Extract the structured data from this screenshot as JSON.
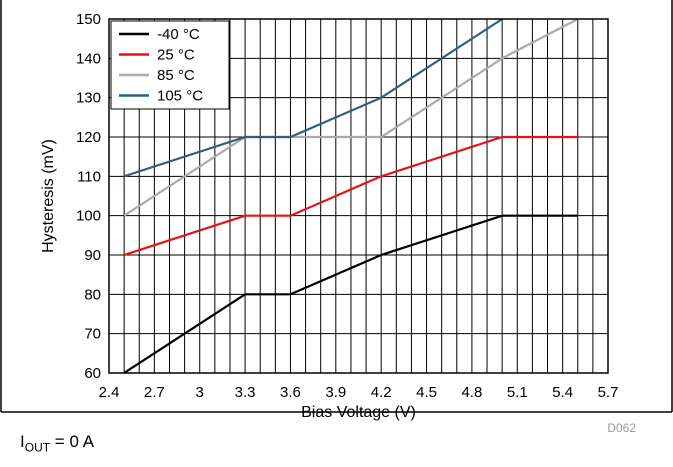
{
  "chart_data": {
    "type": "line",
    "xlabel": "Bias Voltage (V)",
    "ylabel": "Hysteresis (mV)",
    "xlim": [
      2.4,
      5.7
    ],
    "ylim": [
      60,
      150
    ],
    "xticks": [
      "2.4",
      "2.7",
      "3",
      "3.3",
      "3.6",
      "3.9",
      "4.2",
      "4.5",
      "4.8",
      "5.1",
      "5.4",
      "5.7"
    ],
    "yticks": [
      "60",
      "70",
      "80",
      "90",
      "100",
      "110",
      "120",
      "130",
      "140",
      "150"
    ],
    "grid": true,
    "legend_position": "top-left",
    "series": [
      {
        "name": "-40 °C",
        "color": "#000000",
        "x": [
          2.5,
          3.3,
          3.6,
          4.2,
          5.0,
          5.5
        ],
        "y": [
          60,
          80,
          80,
          90,
          100,
          100
        ]
      },
      {
        "name": "25 °C",
        "color": "#e8101a",
        "x": [
          2.5,
          3.3,
          3.6,
          4.2,
          5.0,
          5.5
        ],
        "y": [
          90,
          100,
          100,
          110,
          120,
          120
        ]
      },
      {
        "name": "85 °C",
        "color": "#aaaaaa",
        "x": [
          2.5,
          3.3,
          4.2,
          5.0,
          5.5
        ],
        "y": [
          100,
          120,
          120,
          140,
          150
        ]
      },
      {
        "name": "105 °C",
        "color": "#2f5f7a",
        "x": [
          2.5,
          3.3,
          3.6,
          4.2,
          5.0
        ],
        "y": [
          110,
          120,
          120,
          130,
          150
        ]
      }
    ],
    "annotation": "D062"
  },
  "footnote": {
    "main": "I",
    "sub": "OUT",
    "rest": " = 0 A"
  }
}
